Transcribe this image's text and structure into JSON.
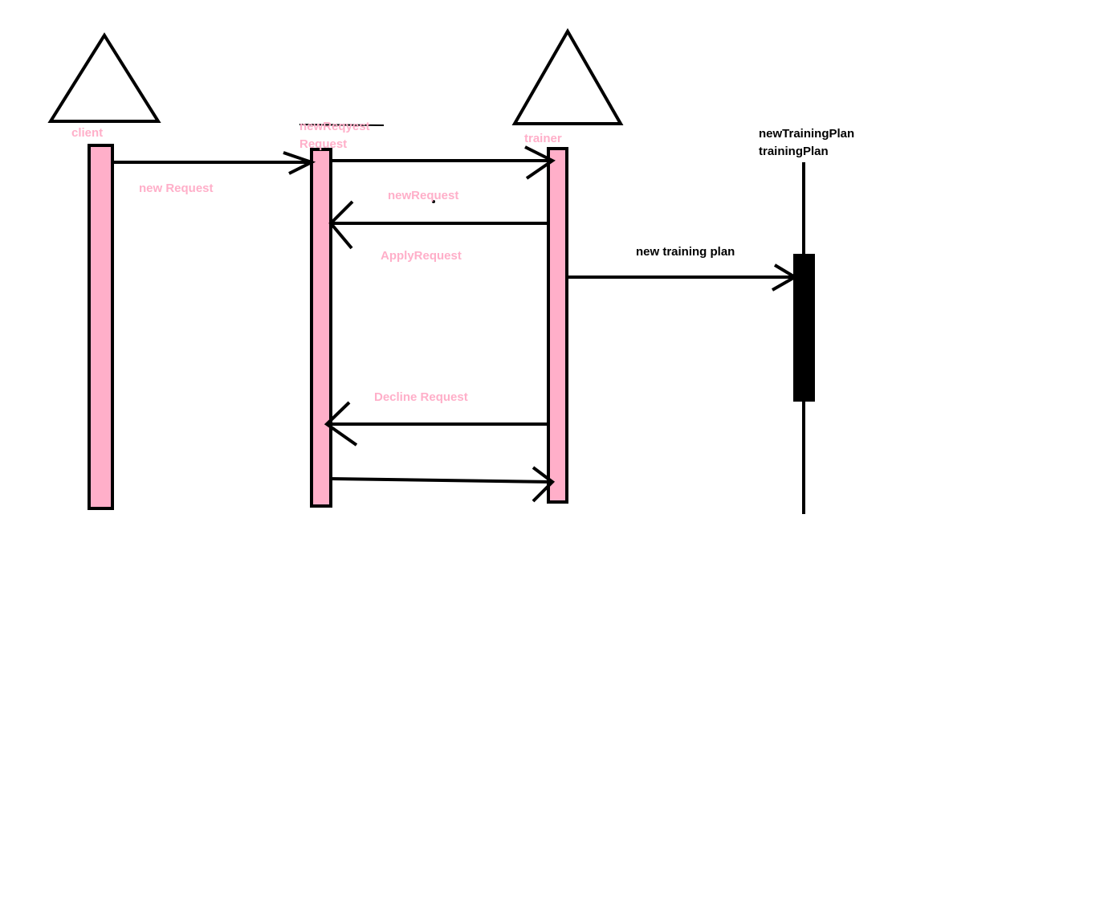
{
  "colors": {
    "activation_fill": "#ffafc9",
    "stroke": "#000000",
    "background": "#ffffff",
    "pink_text": "#ffafc9",
    "black_text": "#000000"
  },
  "lifelines": {
    "client": {
      "label": "client"
    },
    "request": {
      "label_struck": "newReqyest",
      "label": "Request"
    },
    "trainer": {
      "label": "trainer"
    },
    "training_plan": {
      "label_line1": "newTrainingPlan",
      "label_line2": "trainingPlan"
    }
  },
  "messages": {
    "new_request": "new Request",
    "new_request_return": "newRequest",
    "apply_request": "ApplyRequest",
    "new_training_plan": "new training plan",
    "decline_request": "Decline Request"
  }
}
